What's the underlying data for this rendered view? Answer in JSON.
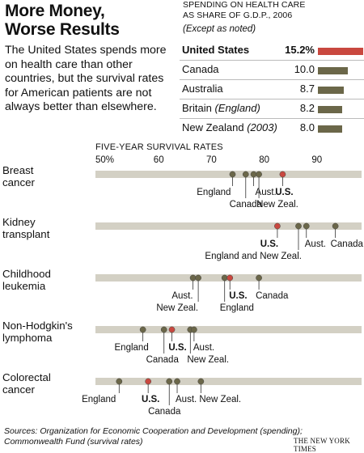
{
  "header": {
    "title_line1": "More Money,",
    "title_line2": "Worse Results",
    "intro": "The United States spends more on health care than other countries, but the survival rates for American patients are not always better than elsewhere."
  },
  "spending": {
    "heading_line1": "SPENDING ON HEALTH CARE",
    "heading_line2": "AS SHARE OF G.D.P., 2006",
    "note": "(Except as noted)",
    "rows": [
      {
        "country": "United States",
        "qualifier": "",
        "value": 15.2,
        "label": "15.2%",
        "highlight": true
      },
      {
        "country": "Canada",
        "qualifier": "",
        "value": 10.0,
        "label": "10.0",
        "highlight": false
      },
      {
        "country": "Australia",
        "qualifier": "",
        "value": 8.7,
        "label": "8.7",
        "highlight": false
      },
      {
        "country": "Britain",
        "qualifier": "(England)",
        "value": 8.2,
        "label": "8.2",
        "highlight": false
      },
      {
        "country": "New Zealand",
        "qualifier": "(2003)",
        "value": 8.0,
        "label": "8.0",
        "highlight": false
      }
    ]
  },
  "colors": {
    "us": "#c9483f",
    "other": "#6b6749",
    "track": "#d3d0c4",
    "leader": "#333333"
  },
  "chart_data": {
    "type": "scatter",
    "title": "FIVE-YEAR SURVIVAL RATES",
    "x_ticks": [
      "50%",
      "60",
      "70",
      "80",
      "90"
    ],
    "x_tick_values": [
      50,
      60,
      70,
      80,
      90
    ],
    "xlim": [
      50,
      100
    ],
    "series": [
      {
        "name": "Breast cancer",
        "label_lines": [
          "Breast",
          "cancer"
        ],
        "points": [
          {
            "label": "England",
            "value": 74,
            "us": false
          },
          {
            "label": "Canada",
            "value": 76.5,
            "us": false
          },
          {
            "label": "Aust.",
            "value": 78,
            "us": false
          },
          {
            "label": "New Zeal.",
            "value": 79,
            "us": false
          },
          {
            "label": "U.S.",
            "value": 83.5,
            "us": true
          }
        ]
      },
      {
        "name": "Kidney transplant",
        "label_lines": [
          "Kidney",
          "transplant"
        ],
        "points": [
          {
            "label": "U.S.",
            "value": 82.5,
            "us": true
          },
          {
            "label": "England and New Zeal.",
            "value": 86.5,
            "us": false
          },
          {
            "label": "Aust.",
            "value": 88,
            "us": false
          },
          {
            "label": "Canada",
            "value": 93.5,
            "us": false
          }
        ]
      },
      {
        "name": "Childhood leukemia",
        "label_lines": [
          "Childhood",
          "leukemia"
        ],
        "points": [
          {
            "label": "Aust.",
            "value": 66.5,
            "us": false
          },
          {
            "label": "New Zeal.",
            "value": 67.5,
            "us": false
          },
          {
            "label": "England",
            "value": 72.5,
            "us": false
          },
          {
            "label": "U.S.",
            "value": 73.5,
            "us": true
          },
          {
            "label": "Canada",
            "value": 79,
            "us": false
          }
        ]
      },
      {
        "name": "Non-Hodgkin's lymphoma",
        "label_lines": [
          "Non-Hodgkin's",
          "lymphoma"
        ],
        "points": [
          {
            "label": "England",
            "value": 57,
            "us": false
          },
          {
            "label": "Canada",
            "value": 61,
            "us": false
          },
          {
            "label": "U.S.",
            "value": 62.5,
            "us": true
          },
          {
            "label": "New Zeal.",
            "value": 66,
            "us": false
          },
          {
            "label": "Aust.",
            "value": 66.7,
            "us": false
          }
        ]
      },
      {
        "name": "Colorectal cancer",
        "label_lines": [
          "Colorectal",
          "cancer"
        ],
        "points": [
          {
            "label": "England",
            "value": 52.5,
            "us": false
          },
          {
            "label": "U.S.",
            "value": 58,
            "us": true
          },
          {
            "label": "Canada",
            "value": 62,
            "us": false
          },
          {
            "label": "Aust.",
            "value": 63.5,
            "us": false
          },
          {
            "label": "New Zeal.",
            "value": 68,
            "us": false
          }
        ]
      }
    ]
  },
  "footer": {
    "sources_line1": "Sources: Organization for Economic Cooperation and Development (spending);",
    "sources_line2": "Commonwealth Fund (survival rates)",
    "credit": "THE NEW YORK TIMES"
  }
}
